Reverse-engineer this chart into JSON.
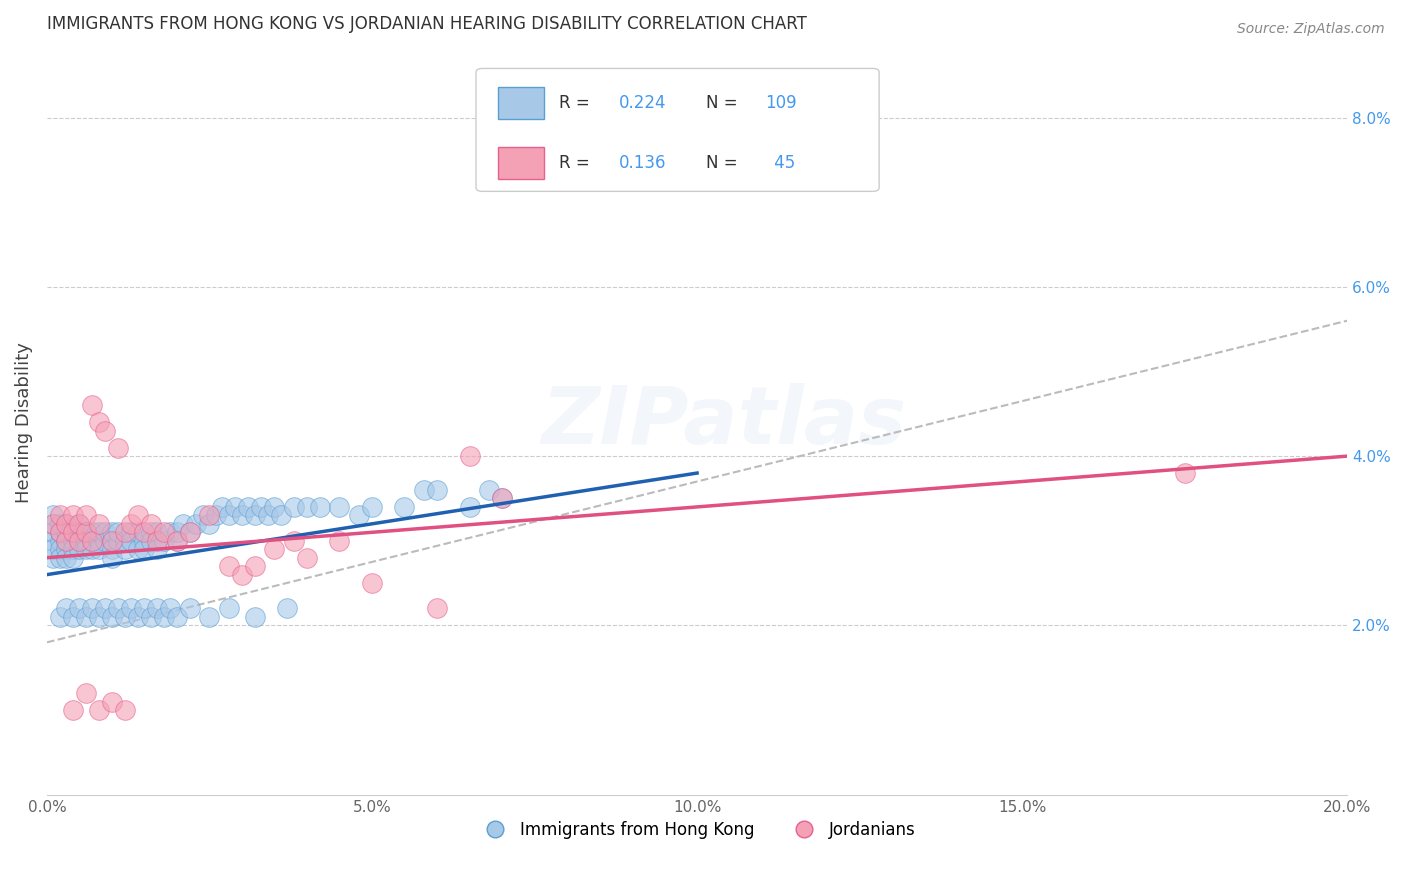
{
  "title": "IMMIGRANTS FROM HONG KONG VS JORDANIAN HEARING DISABILITY CORRELATION CHART",
  "source": "Source: ZipAtlas.com",
  "ylabel": "Hearing Disability",
  "xlim": [
    0.0,
    0.2
  ],
  "ylim": [
    0.0,
    0.088
  ],
  "color_blue": "#a8c8e8",
  "color_pink": "#f4a0b5",
  "color_blue_edge": "#5a9fd4",
  "color_pink_edge": "#e86090",
  "color_blue_line": "#2060b0",
  "color_pink_line": "#e05080",
  "watermark": "ZIPatlas",
  "legend_label1": "Immigrants from Hong Kong",
  "legend_label2": "Jordanians",
  "blue_scatter_x": [
    0.001,
    0.001,
    0.001,
    0.001,
    0.001,
    0.001,
    0.002,
    0.002,
    0.002,
    0.002,
    0.002,
    0.003,
    0.003,
    0.003,
    0.003,
    0.003,
    0.004,
    0.004,
    0.004,
    0.004,
    0.005,
    0.005,
    0.005,
    0.005,
    0.006,
    0.006,
    0.006,
    0.007,
    0.007,
    0.007,
    0.008,
    0.008,
    0.008,
    0.009,
    0.009,
    0.01,
    0.01,
    0.01,
    0.01,
    0.011,
    0.011,
    0.012,
    0.012,
    0.013,
    0.013,
    0.014,
    0.014,
    0.015,
    0.015,
    0.016,
    0.016,
    0.017,
    0.017,
    0.018,
    0.019,
    0.02,
    0.02,
    0.021,
    0.022,
    0.023,
    0.024,
    0.025,
    0.026,
    0.027,
    0.028,
    0.029,
    0.03,
    0.031,
    0.032,
    0.033,
    0.034,
    0.035,
    0.036,
    0.038,
    0.04,
    0.042,
    0.045,
    0.048,
    0.05,
    0.055,
    0.058,
    0.06,
    0.065,
    0.068,
    0.07,
    0.002,
    0.003,
    0.004,
    0.005,
    0.006,
    0.007,
    0.008,
    0.009,
    0.01,
    0.011,
    0.012,
    0.013,
    0.014,
    0.015,
    0.016,
    0.017,
    0.018,
    0.019,
    0.02,
    0.022,
    0.025,
    0.028,
    0.032,
    0.037
  ],
  "blue_scatter_y": [
    0.03,
    0.031,
    0.032,
    0.028,
    0.029,
    0.033,
    0.03,
    0.031,
    0.029,
    0.028,
    0.032,
    0.031,
    0.03,
    0.029,
    0.028,
    0.032,
    0.03,
    0.029,
    0.031,
    0.028,
    0.03,
    0.031,
    0.029,
    0.032,
    0.03,
    0.029,
    0.031,
    0.03,
    0.031,
    0.029,
    0.03,
    0.031,
    0.029,
    0.03,
    0.031,
    0.03,
    0.031,
    0.029,
    0.028,
    0.03,
    0.031,
    0.03,
    0.029,
    0.031,
    0.03,
    0.029,
    0.031,
    0.03,
    0.029,
    0.031,
    0.03,
    0.031,
    0.029,
    0.03,
    0.031,
    0.03,
    0.031,
    0.032,
    0.031,
    0.032,
    0.033,
    0.032,
    0.033,
    0.034,
    0.033,
    0.034,
    0.033,
    0.034,
    0.033,
    0.034,
    0.033,
    0.034,
    0.033,
    0.034,
    0.034,
    0.034,
    0.034,
    0.033,
    0.034,
    0.034,
    0.036,
    0.036,
    0.034,
    0.036,
    0.035,
    0.021,
    0.022,
    0.021,
    0.022,
    0.021,
    0.022,
    0.021,
    0.022,
    0.021,
    0.022,
    0.021,
    0.022,
    0.021,
    0.022,
    0.021,
    0.022,
    0.021,
    0.022,
    0.021,
    0.022,
    0.021,
    0.022,
    0.021,
    0.022
  ],
  "pink_scatter_x": [
    0.001,
    0.002,
    0.002,
    0.003,
    0.003,
    0.004,
    0.004,
    0.005,
    0.005,
    0.006,
    0.006,
    0.007,
    0.007,
    0.008,
    0.008,
    0.009,
    0.01,
    0.011,
    0.012,
    0.013,
    0.014,
    0.015,
    0.016,
    0.017,
    0.018,
    0.02,
    0.022,
    0.025,
    0.028,
    0.03,
    0.032,
    0.035,
    0.038,
    0.04,
    0.045,
    0.05,
    0.06,
    0.065,
    0.07,
    0.175,
    0.004,
    0.006,
    0.008,
    0.01,
    0.012
  ],
  "pink_scatter_y": [
    0.032,
    0.031,
    0.033,
    0.03,
    0.032,
    0.031,
    0.033,
    0.03,
    0.032,
    0.031,
    0.033,
    0.03,
    0.046,
    0.044,
    0.032,
    0.043,
    0.03,
    0.041,
    0.031,
    0.032,
    0.033,
    0.031,
    0.032,
    0.03,
    0.031,
    0.03,
    0.031,
    0.033,
    0.027,
    0.026,
    0.027,
    0.029,
    0.03,
    0.028,
    0.03,
    0.025,
    0.022,
    0.04,
    0.035,
    0.038,
    0.01,
    0.012,
    0.01,
    0.011,
    0.01
  ],
  "blue_line": [
    [
      0.0,
      0.1
    ],
    [
      0.026,
      0.038
    ]
  ],
  "pink_line": [
    [
      0.0,
      0.2
    ],
    [
      0.028,
      0.04
    ]
  ],
  "grey_line": [
    [
      0.0,
      0.2
    ],
    [
      0.018,
      0.056
    ]
  ]
}
